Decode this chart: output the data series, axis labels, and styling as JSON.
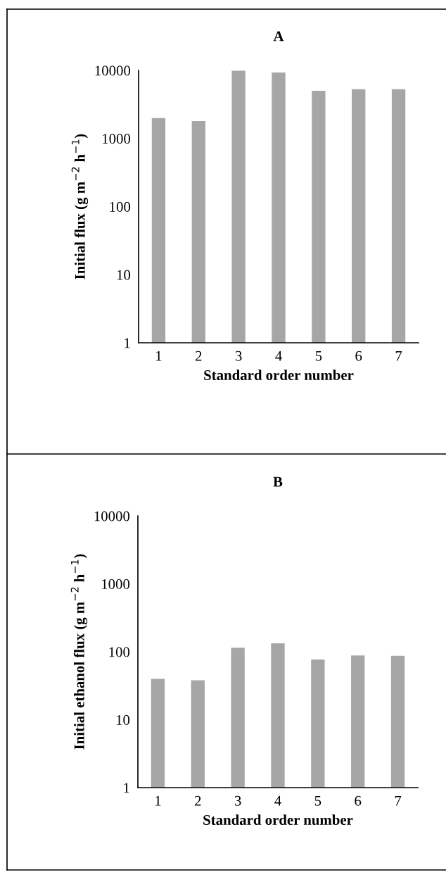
{
  "chart_data": [
    {
      "type": "bar",
      "title": "A",
      "xlabel": "Standard order number",
      "ylabel": "Initial flux (g m$^{−2}$ h$^{−1}$)",
      "categories": [
        "1",
        "2",
        "3",
        "4",
        "5",
        "6",
        "7"
      ],
      "values": [
        2000,
        1800,
        9900,
        9300,
        5000,
        5300,
        5300
      ],
      "color": "#a6a6a6",
      "log": "y",
      "ylim": [
        1,
        10000
      ],
      "yticks": [
        1,
        10,
        100,
        1000,
        10000
      ],
      "grid": false,
      "legend": false
    },
    {
      "type": "bar",
      "title": "B",
      "xlabel": "Standard order number",
      "ylabel": "Initial ethanol flux (g m$^{−2}$ h$^{−1}$)",
      "categories": [
        "1",
        "2",
        "3",
        "4",
        "5",
        "6",
        "7"
      ],
      "values": [
        40,
        38,
        115,
        133,
        77,
        88,
        87
      ],
      "color": "#a6a6a6",
      "log": "y",
      "ylim": [
        1,
        10000
      ],
      "yticks": [
        1,
        10,
        100,
        1000,
        10000
      ],
      "grid": false,
      "legend": false
    }
  ]
}
